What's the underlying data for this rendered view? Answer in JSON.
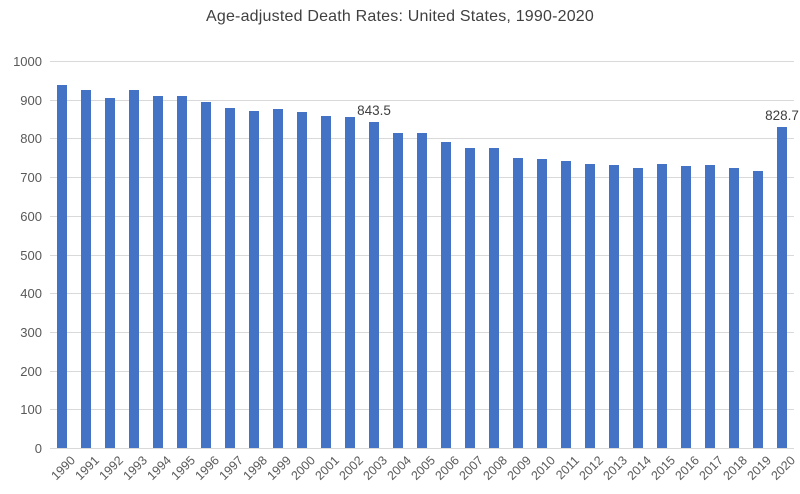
{
  "chart_data": {
    "type": "bar",
    "title": "Age-adjusted Death Rates: United States, 1990-2020",
    "xlabel": "",
    "ylabel": "",
    "categories": [
      "1990",
      "1991",
      "1992",
      "1993",
      "1994",
      "1995",
      "1996",
      "1997",
      "1998",
      "1999",
      "2000",
      "2001",
      "2002",
      "2003",
      "2004",
      "2005",
      "2006",
      "2007",
      "2008",
      "2009",
      "2010",
      "2011",
      "2012",
      "2013",
      "2014",
      "2015",
      "2016",
      "2017",
      "2018",
      "2019",
      "2020"
    ],
    "values": [
      938.7,
      924.0,
      905.6,
      926.1,
      909.8,
      909.8,
      894.1,
      878.1,
      870.6,
      875.6,
      869.0,
      858.8,
      855.9,
      843.5,
      813.7,
      815.0,
      791.8,
      775.3,
      774.9,
      749.6,
      747.0,
      741.3,
      732.8,
      731.9,
      724.6,
      733.1,
      728.8,
      731.9,
      723.6,
      715.2,
      828.7
    ],
    "ylim": [
      0,
      1000
    ],
    "y_ticks": [
      0,
      100,
      200,
      300,
      400,
      500,
      600,
      700,
      800,
      900,
      1000
    ],
    "grid": true,
    "legend_position": "none",
    "annotations": [
      {
        "category": "2003",
        "label": "843.5"
      },
      {
        "category": "2020",
        "label": "828.7"
      }
    ],
    "colors": {
      "bar": "#4472c4",
      "gridline": "#d9d9d9",
      "axis_labels": "#595959",
      "title": "#404040",
      "data_labels": "#404040",
      "background": "#ffffff"
    }
  }
}
